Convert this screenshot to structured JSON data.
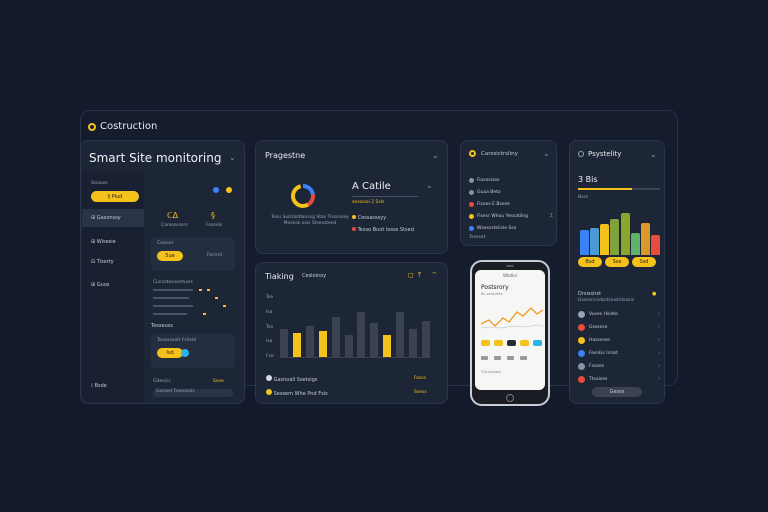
{
  "brand": {
    "title": "Costruction"
  },
  "left_card": {
    "title": "Smart Site monitoring",
    "subtitle": "Sissuos",
    "pill": "§ Piud",
    "nav": [
      {
        "label": "Gasonssy"
      },
      {
        "label": "Wisesie"
      },
      {
        "label": "Tisorty"
      },
      {
        "label": "Guos"
      }
    ],
    "footer": "Bsde",
    "stat1_value": "ℂΔ",
    "stat1_label": "Caressssors",
    "stat2_value": "§",
    "stat2_label": "Fosseis",
    "block1_title": "Cosisel",
    "block1_pill": "5ue",
    "block1_note": "Fecirnt",
    "list_header": "Ciorsstasisestuiss",
    "section_label": "Tesseuss",
    "block2_title": "Tsseusuelt Fslieid",
    "block2_pill": "Isd",
    "bottom_label": "Gitesicc",
    "bottom_value": "Ssee",
    "bottom_field": "Gosisel Fosissiols"
  },
  "progress_card": {
    "title": "Pragestne",
    "heading": "A Catile",
    "subline": "eossisoi 2 Ssls",
    "legend": [
      {
        "label": "Cessasssyy"
      },
      {
        "label": "Tesso Buot Iosss Stsed"
      }
    ],
    "caption": "Tesu Soitsloitlanssg Stse Trsssisaly Mosesk osis Stsessteed"
  },
  "tracking_card": {
    "title": "Tiaking",
    "subtitle": "Cesloinoy",
    "y_labels": [
      "Tse",
      "Isa",
      "Tse",
      "Isa",
      "Fse"
    ],
    "bars": [
      {
        "height": 0.5,
        "color": "#3a4253"
      },
      {
        "height": 0.42,
        "color": "#f5c21b"
      },
      {
        "height": 0.55,
        "color": "#3a4253"
      },
      {
        "height": 0.46,
        "color": "#f5c21b"
      },
      {
        "height": 0.72,
        "color": "#3a4253"
      },
      {
        "height": 0.4,
        "color": "#3a4253"
      },
      {
        "height": 0.8,
        "color": "#3a4253"
      },
      {
        "height": 0.6,
        "color": "#3a4253"
      },
      {
        "height": 0.4,
        "color": "#f5c21b"
      },
      {
        "height": 0.8,
        "color": "#3a4253"
      },
      {
        "height": 0.5,
        "color": "#3a4253"
      },
      {
        "height": 0.65,
        "color": "#3a4253"
      }
    ],
    "items": [
      {
        "label": "Gasnoall Ssetsigs",
        "action": "Fasss"
      },
      {
        "label": "Sessem Whe Pnd Fsis",
        "action": "Ssess"
      }
    ]
  },
  "mini_card": {
    "title": "Carssictrsliny",
    "rows": [
      {
        "label": "Fiosesises",
        "color": "#8a93a5"
      },
      {
        "label": "Guaa Beto",
        "color": "#8a93a5"
      },
      {
        "label": "Fisoes E Bsese",
        "color": "#e74c3c"
      },
      {
        "label": "Fisesr Whou Yessatilng",
        "color": "#f5c21b",
        "badge": "Σ"
      },
      {
        "label": "Wsesssteiisle Sse",
        "color": "#3b82f6"
      }
    ],
    "footer": "Tsesset"
  },
  "phone": {
    "status": "Wbdkd",
    "title": "Postsrory",
    "subtitle": "Bs sebsdtlss",
    "footer_text": "F\\Suestsels"
  },
  "right_card": {
    "title": "Psystelity",
    "stat": "3 Bis",
    "stat_note": "Bsss",
    "bars": [
      {
        "value": 0.56,
        "color": "#3b82f6"
      },
      {
        "value": 0.62,
        "color": "#4a9ad6"
      },
      {
        "value": 0.7,
        "color": "#f5c21b"
      },
      {
        "value": 0.82,
        "color": "#7ea33a"
      },
      {
        "value": 0.95,
        "color": "#8aa62c"
      },
      {
        "value": 0.5,
        "color": "#5fb36a"
      },
      {
        "value": 0.72,
        "color": "#d99a2b"
      },
      {
        "value": 0.45,
        "color": "#e74c3c"
      }
    ],
    "pills": [
      "Bsd",
      "Sse",
      "Ssd"
    ],
    "list_header": "Drsissirst",
    "list_sub": "Gssesrssidsstsiustidsasis",
    "list": [
      {
        "label": "Vuses Hsiete",
        "color": "#9aa3b5"
      },
      {
        "label": "Gsssese",
        "color": "#e74c3c"
      },
      {
        "label": "Hassoree",
        "color": "#f5c21b"
      },
      {
        "label": "Fasskis Irrost",
        "color": "#3b82f6"
      },
      {
        "label": "Fssoes",
        "color": "#8a93a5"
      },
      {
        "label": "Ttsoises",
        "color": "#e74c3c"
      }
    ],
    "button": "Gesss"
  },
  "colors": {
    "accent": "#f5c21b",
    "bg": "#121a2b",
    "card": "#1d2637"
  }
}
